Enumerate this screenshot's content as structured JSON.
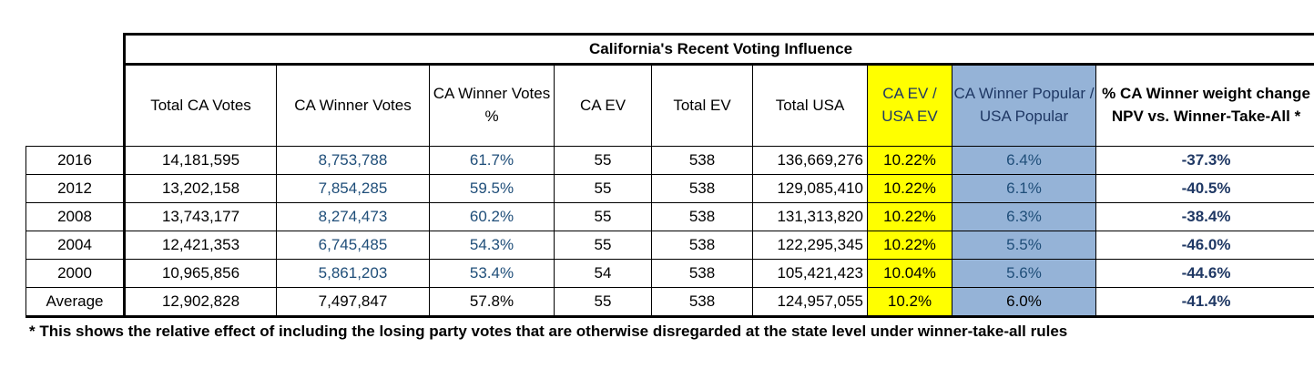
{
  "title": "California's Recent Voting Influence",
  "headers": {
    "total_ca_votes": "Total CA Votes",
    "ca_winner_votes": "CA Winner Votes",
    "ca_winner_votes_pct": "CA Winner Votes %",
    "ca_ev": "CA EV",
    "total_ev": "Total EV",
    "total_usa": "Total USA",
    "ca_ev_usa_ev": "CA EV / USA EV",
    "ca_winner_popular_usa_popular": "CA Winner Popular / USA Popular",
    "weight_change": "% CA Winner weight change NPV vs. Winner-Take-All *"
  },
  "rows": [
    {
      "label": "2016",
      "total_ca_votes": "14,181,595",
      "ca_winner_votes": "8,753,788",
      "ca_winner_pct": "61.7%",
      "ca_ev": "55",
      "total_ev": "538",
      "total_usa": "136,669,276",
      "ev_ratio": "10.22%",
      "popular_ratio": "6.4%",
      "weight_change": "-37.3%"
    },
    {
      "label": "2012",
      "total_ca_votes": "13,202,158",
      "ca_winner_votes": "7,854,285",
      "ca_winner_pct": "59.5%",
      "ca_ev": "55",
      "total_ev": "538",
      "total_usa": "129,085,410",
      "ev_ratio": "10.22%",
      "popular_ratio": "6.1%",
      "weight_change": "-40.5%"
    },
    {
      "label": "2008",
      "total_ca_votes": "13,743,177",
      "ca_winner_votes": "8,274,473",
      "ca_winner_pct": "60.2%",
      "ca_ev": "55",
      "total_ev": "538",
      "total_usa": "131,313,820",
      "ev_ratio": "10.22%",
      "popular_ratio": "6.3%",
      "weight_change": "-38.4%"
    },
    {
      "label": "2004",
      "total_ca_votes": "12,421,353",
      "ca_winner_votes": "6,745,485",
      "ca_winner_pct": "54.3%",
      "ca_ev": "55",
      "total_ev": "538",
      "total_usa": "122,295,345",
      "ev_ratio": "10.22%",
      "popular_ratio": "5.5%",
      "weight_change": "-46.0%"
    },
    {
      "label": "2000",
      "total_ca_votes": "10,965,856",
      "ca_winner_votes": "5,861,203",
      "ca_winner_pct": "53.4%",
      "ca_ev": "54",
      "total_ev": "538",
      "total_usa": "105,421,423",
      "ev_ratio": "10.04%",
      "popular_ratio": "5.6%",
      "weight_change": "-44.6%"
    },
    {
      "label": "Average",
      "total_ca_votes": "12,902,828",
      "ca_winner_votes": "7,497,847",
      "ca_winner_pct": "57.8%",
      "ca_ev": "55",
      "total_ev": "538",
      "total_usa": "124,957,055",
      "ev_ratio": "10.2%",
      "popular_ratio": "6.0%",
      "weight_change": "-41.4%"
    }
  ],
  "footnote": "* This shows the relative effect of including the losing party votes that are otherwise disregarded at the state level under winner-take-all rules",
  "colors": {
    "yellow": "#ffff00",
    "blue": "#95b3d7",
    "blue_text": "#1f4e79"
  }
}
